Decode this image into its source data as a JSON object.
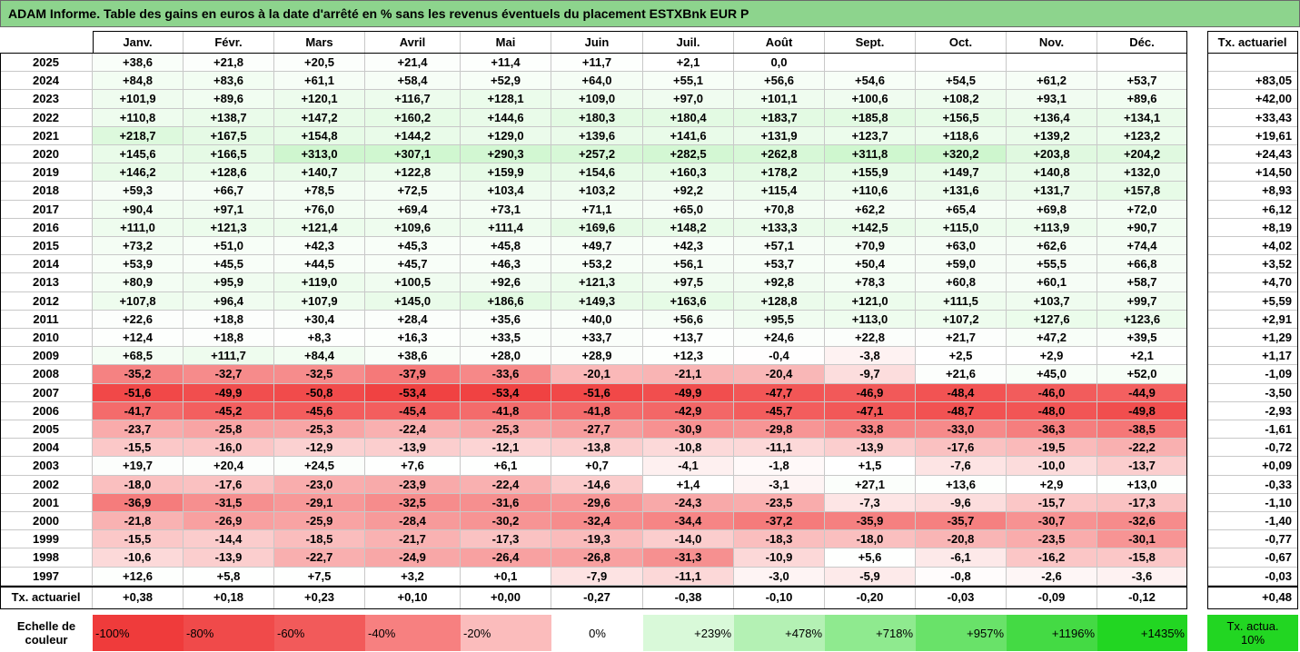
{
  "title": "ADAM Informe. Table des gains en euros à la date d'arrêté en % sans les revenus éventuels du placement ESTXBnk EUR P",
  "table": {
    "columns": [
      "Janv.",
      "Févr.",
      "Mars",
      "Avril",
      "Mai",
      "Juin",
      "Juil.",
      "Août",
      "Sept.",
      "Oct.",
      "Nov.",
      "Déc."
    ],
    "rate_header": "Tx. actuariel",
    "rows": [
      {
        "year": "2025",
        "values": [
          "+38,6",
          "+21,8",
          "+20,5",
          "+21,4",
          "+11,4",
          "+11,7",
          "+2,1",
          "0,0",
          null,
          null,
          null,
          null
        ],
        "rate": null
      },
      {
        "year": "2024",
        "values": [
          "+84,8",
          "+83,6",
          "+61,1",
          "+58,4",
          "+52,9",
          "+64,0",
          "+55,1",
          "+56,6",
          "+54,6",
          "+54,5",
          "+61,2",
          "+53,7"
        ],
        "rate": "+83,05"
      },
      {
        "year": "2023",
        "values": [
          "+101,9",
          "+89,6",
          "+120,1",
          "+116,7",
          "+128,1",
          "+109,0",
          "+97,0",
          "+101,1",
          "+100,6",
          "+108,2",
          "+93,1",
          "+89,6"
        ],
        "rate": "+42,00"
      },
      {
        "year": "2022",
        "values": [
          "+110,8",
          "+138,7",
          "+147,2",
          "+160,2",
          "+144,6",
          "+180,3",
          "+180,4",
          "+183,7",
          "+185,8",
          "+156,5",
          "+136,4",
          "+134,1"
        ],
        "rate": "+33,43"
      },
      {
        "year": "2021",
        "values": [
          "+218,7",
          "+167,5",
          "+154,8",
          "+144,2",
          "+129,0",
          "+139,6",
          "+141,6",
          "+131,9",
          "+123,7",
          "+118,6",
          "+139,2",
          "+123,2"
        ],
        "rate": "+19,61"
      },
      {
        "year": "2020",
        "values": [
          "+145,6",
          "+166,5",
          "+313,0",
          "+307,1",
          "+290,3",
          "+257,2",
          "+282,5",
          "+262,8",
          "+311,8",
          "+320,2",
          "+203,8",
          "+204,2"
        ],
        "rate": "+24,43"
      },
      {
        "year": "2019",
        "values": [
          "+146,2",
          "+128,6",
          "+140,7",
          "+122,8",
          "+159,9",
          "+154,6",
          "+160,3",
          "+178,2",
          "+155,9",
          "+149,7",
          "+140,8",
          "+132,0"
        ],
        "rate": "+14,50"
      },
      {
        "year": "2018",
        "values": [
          "+59,3",
          "+66,7",
          "+78,5",
          "+72,5",
          "+103,4",
          "+103,2",
          "+92,2",
          "+115,4",
          "+110,6",
          "+131,6",
          "+131,7",
          "+157,8"
        ],
        "rate": "+8,93"
      },
      {
        "year": "2017",
        "values": [
          "+90,4",
          "+97,1",
          "+76,0",
          "+69,4",
          "+73,1",
          "+71,1",
          "+65,0",
          "+70,8",
          "+62,2",
          "+65,4",
          "+69,8",
          "+72,0"
        ],
        "rate": "+6,12"
      },
      {
        "year": "2016",
        "values": [
          "+111,0",
          "+121,3",
          "+121,4",
          "+109,6",
          "+111,4",
          "+169,6",
          "+148,2",
          "+133,3",
          "+142,5",
          "+115,0",
          "+113,9",
          "+90,7"
        ],
        "rate": "+8,19"
      },
      {
        "year": "2015",
        "values": [
          "+73,2",
          "+51,0",
          "+42,3",
          "+45,3",
          "+45,8",
          "+49,7",
          "+42,3",
          "+57,1",
          "+70,9",
          "+63,0",
          "+62,6",
          "+74,4"
        ],
        "rate": "+4,02"
      },
      {
        "year": "2014",
        "values": [
          "+53,9",
          "+45,5",
          "+44,5",
          "+45,7",
          "+46,3",
          "+53,2",
          "+56,1",
          "+53,7",
          "+50,4",
          "+59,0",
          "+55,5",
          "+66,8"
        ],
        "rate": "+3,52"
      },
      {
        "year": "2013",
        "values": [
          "+80,9",
          "+95,9",
          "+119,0",
          "+100,5",
          "+92,6",
          "+121,3",
          "+97,5",
          "+92,8",
          "+78,3",
          "+60,8",
          "+60,1",
          "+58,7"
        ],
        "rate": "+4,70"
      },
      {
        "year": "2012",
        "values": [
          "+107,8",
          "+96,4",
          "+107,9",
          "+145,0",
          "+186,6",
          "+149,3",
          "+163,6",
          "+128,8",
          "+121,0",
          "+111,5",
          "+103,7",
          "+99,7"
        ],
        "rate": "+5,59"
      },
      {
        "year": "2011",
        "values": [
          "+22,6",
          "+18,8",
          "+30,4",
          "+28,4",
          "+35,6",
          "+40,0",
          "+56,6",
          "+95,5",
          "+113,0",
          "+107,2",
          "+127,6",
          "+123,6"
        ],
        "rate": "+2,91"
      },
      {
        "year": "2010",
        "values": [
          "+12,4",
          "+18,8",
          "+8,3",
          "+16,3",
          "+33,5",
          "+33,7",
          "+13,7",
          "+24,6",
          "+22,8",
          "+21,7",
          "+47,2",
          "+39,5"
        ],
        "rate": "+1,29"
      },
      {
        "year": "2009",
        "values": [
          "+68,5",
          "+111,7",
          "+84,4",
          "+38,6",
          "+28,0",
          "+28,9",
          "+12,3",
          "-0,4",
          "-3,8",
          "+2,5",
          "+2,9",
          "+2,1"
        ],
        "rate": "+1,17"
      },
      {
        "year": "2008",
        "values": [
          "-35,2",
          "-32,7",
          "-32,5",
          "-37,9",
          "-33,6",
          "-20,1",
          "-21,1",
          "-20,4",
          "-9,7",
          "+21,6",
          "+45,0",
          "+52,0"
        ],
        "rate": "-1,09"
      },
      {
        "year": "2007",
        "values": [
          "-51,6",
          "-49,9",
          "-50,8",
          "-53,4",
          "-53,4",
          "-51,6",
          "-49,9",
          "-47,7",
          "-46,9",
          "-48,4",
          "-46,0",
          "-44,9"
        ],
        "rate": "-3,50"
      },
      {
        "year": "2006",
        "values": [
          "-41,7",
          "-45,2",
          "-45,6",
          "-45,4",
          "-41,8",
          "-41,8",
          "-42,9",
          "-45,7",
          "-47,1",
          "-48,7",
          "-48,0",
          "-49,8"
        ],
        "rate": "-2,93"
      },
      {
        "year": "2005",
        "values": [
          "-23,7",
          "-25,8",
          "-25,3",
          "-22,4",
          "-25,3",
          "-27,7",
          "-30,9",
          "-29,8",
          "-33,8",
          "-33,0",
          "-36,3",
          "-38,5"
        ],
        "rate": "-1,61"
      },
      {
        "year": "2004",
        "values": [
          "-15,5",
          "-16,0",
          "-12,9",
          "-13,9",
          "-12,1",
          "-13,8",
          "-10,8",
          "-11,1",
          "-13,9",
          "-17,6",
          "-19,5",
          "-22,2"
        ],
        "rate": "-0,72"
      },
      {
        "year": "2003",
        "values": [
          "+19,7",
          "+20,4",
          "+24,5",
          "+7,6",
          "+6,1",
          "+0,7",
          "-4,1",
          "-1,8",
          "+1,5",
          "-7,6",
          "-10,0",
          "-13,7"
        ],
        "rate": "+0,09"
      },
      {
        "year": "2002",
        "values": [
          "-18,0",
          "-17,6",
          "-23,0",
          "-23,9",
          "-22,4",
          "-14,6",
          "+1,4",
          "-3,1",
          "+27,1",
          "+13,6",
          "+2,9",
          "+13,0"
        ],
        "rate": "-0,33"
      },
      {
        "year": "2001",
        "values": [
          "-36,9",
          "-31,5",
          "-29,1",
          "-32,5",
          "-31,6",
          "-29,6",
          "-24,3",
          "-23,5",
          "-7,3",
          "-9,6",
          "-15,7",
          "-17,3"
        ],
        "rate": "-1,10"
      },
      {
        "year": "2000",
        "values": [
          "-21,8",
          "-26,9",
          "-25,9",
          "-28,4",
          "-30,2",
          "-32,4",
          "-34,4",
          "-37,2",
          "-35,9",
          "-35,7",
          "-30,7",
          "-32,6"
        ],
        "rate": "-1,40"
      },
      {
        "year": "1999",
        "values": [
          "-15,5",
          "-14,4",
          "-18,5",
          "-21,7",
          "-17,3",
          "-19,3",
          "-14,0",
          "-18,3",
          "-18,0",
          "-20,8",
          "-23,5",
          "-30,1"
        ],
        "rate": "-0,77"
      },
      {
        "year": "1998",
        "values": [
          "-10,6",
          "-13,9",
          "-22,7",
          "-24,9",
          "-26,4",
          "-26,8",
          "-31,3",
          "-10,9",
          "+5,6",
          "-6,1",
          "-16,2",
          "-15,8"
        ],
        "rate": "-0,67"
      },
      {
        "year": "1997",
        "values": [
          "+12,6",
          "+5,8",
          "+7,5",
          "+3,2",
          "+0,1",
          "-7,9",
          "-11,1",
          "-3,0",
          "-5,9",
          "-0,8",
          "-2,6",
          "-3,6"
        ],
        "rate": "-0,03"
      }
    ],
    "footer": {
      "label": "Tx. actuariel",
      "values": [
        "+0,38",
        "+0,18",
        "+0,23",
        "+0,10",
        "+0,00",
        "-0,27",
        "-0,38",
        "-0,10",
        "-0,20",
        "-0,03",
        "-0,09",
        "-0,12"
      ],
      "rate": "+0,48"
    }
  },
  "scale": {
    "label": "Echelle de couleur",
    "steps": [
      "-100%",
      "-80%",
      "-60%",
      "-40%",
      "-20%",
      "0%",
      "+239%",
      "+478%",
      "+718%",
      "+957%",
      "+1196%",
      "+1435%"
    ],
    "rate_label": "Tx. actua. 10%"
  }
}
